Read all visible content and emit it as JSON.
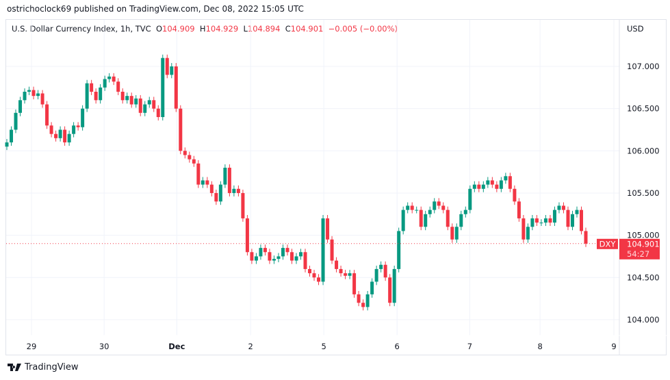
{
  "header": {
    "published": "ostrichoclock69 published on TradingView.com, Dec 08, 2022 15:05 UTC"
  },
  "legend": {
    "symbol": "U.S. Dollar Currency Index, 1h, TVC",
    "o_label": "O",
    "o": "104.909",
    "h_label": "H",
    "h": "104.929",
    "l_label": "L",
    "l": "104.894",
    "c_label": "C",
    "c": "104.901",
    "change": "−0.005 (−0.00%)"
  },
  "currency": "USD",
  "footer": {
    "brand": "TradingView"
  },
  "colors": {
    "up": "#089981",
    "down": "#f23645",
    "grid": "#f0f3fa"
  },
  "chart_data": {
    "type": "candlestick",
    "title": "U.S. Dollar Currency Index, 1h, TVC",
    "ylim": [
      103.9,
      107.3
    ],
    "y_ticks": [
      "107.000",
      "106.500",
      "106.000",
      "105.500",
      "105.000",
      "104.500",
      "104.000"
    ],
    "y_tick_values": [
      107,
      106.5,
      106,
      105.5,
      105,
      104.5,
      104
    ],
    "x_ticks": [
      {
        "label": "29",
        "pos": 0.04
      },
      {
        "label": "30",
        "pos": 0.166
      },
      {
        "label": "Dec",
        "pos": 0.292,
        "bold": true
      },
      {
        "label": "2",
        "pos": 0.42
      },
      {
        "label": "5",
        "pos": 0.547
      },
      {
        "label": "6",
        "pos": 0.674
      },
      {
        "label": "7",
        "pos": 0.8
      },
      {
        "label": "8",
        "pos": 0.922
      },
      {
        "label": "9",
        "pos": 1.05
      }
    ],
    "last_price": {
      "symbol": "DXY",
      "price": "104.901",
      "countdown": "54:27",
      "value": 104.901
    },
    "closes": [
      106.1,
      106.25,
      106.45,
      106.6,
      106.7,
      106.72,
      106.65,
      106.68,
      106.55,
      106.3,
      106.2,
      106.15,
      106.25,
      106.1,
      106.2,
      106.3,
      106.28,
      106.5,
      106.8,
      106.7,
      106.6,
      106.75,
      106.85,
      106.88,
      106.82,
      106.7,
      106.6,
      106.65,
      106.55,
      106.62,
      106.45,
      106.55,
      106.6,
      106.5,
      106.4,
      107.1,
      106.9,
      107.0,
      106.5,
      106.0,
      105.95,
      105.9,
      105.85,
      105.6,
      105.65,
      105.6,
      105.5,
      105.4,
      105.6,
      105.8,
      105.5,
      105.55,
      105.5,
      105.2,
      104.8,
      104.7,
      104.75,
      104.85,
      104.8,
      104.7,
      104.72,
      104.75,
      104.85,
      104.8,
      104.7,
      104.75,
      104.8,
      104.6,
      104.55,
      104.5,
      104.45,
      105.2,
      104.95,
      104.7,
      104.6,
      104.55,
      104.52,
      104.55,
      104.3,
      104.2,
      104.15,
      104.3,
      104.45,
      104.6,
      104.65,
      104.5,
      104.2,
      104.6,
      105.05,
      105.3,
      105.35,
      105.3,
      105.3,
      105.1,
      105.25,
      105.3,
      105.4,
      105.35,
      105.3,
      105.1,
      104.95,
      105.1,
      105.25,
      105.3,
      105.55,
      105.6,
      105.55,
      105.6,
      105.65,
      105.6,
      105.55,
      105.65,
      105.7,
      105.55,
      105.4,
      105.2,
      104.95,
      105.1,
      105.2,
      105.15,
      105.15,
      105.2,
      105.15,
      105.3,
      105.35,
      105.3,
      105.1,
      105.25,
      105.3,
      105.05,
      104.901
    ]
  }
}
